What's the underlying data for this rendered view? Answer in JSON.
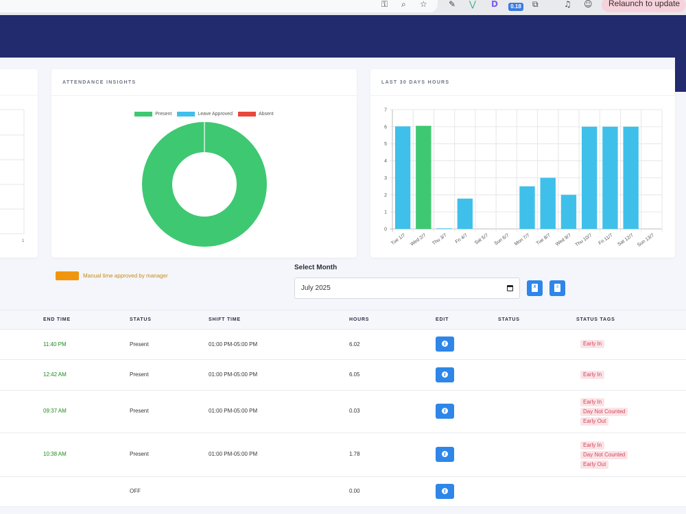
{
  "browser": {
    "ext_badge": "0.18",
    "relaunch_label": "Relaunch to update"
  },
  "colors": {
    "present": "#3ec872",
    "leave_approved": "#3fc0ea",
    "absent": "#e8473a",
    "manual": "#f0960e"
  },
  "attendance_card": {
    "title": "ATTENDANCE INSIGHTS",
    "legend": [
      {
        "label": "Present",
        "color": "#3ec872"
      },
      {
        "label": "Leave Approved",
        "color": "#3fc0ea"
      },
      {
        "label": "Absent",
        "color": "#e8473a"
      }
    ]
  },
  "hours_card": {
    "title": "LAST 30 DAYS HOURS"
  },
  "left_card": {
    "axis_tick": "1"
  },
  "chart_data": [
    {
      "type": "pie",
      "labels": [
        "Present",
        "Leave Approved",
        "Absent"
      ],
      "values": [
        100,
        0,
        0
      ],
      "colors": [
        "#3ec872",
        "#3fc0ea",
        "#e8473a"
      ],
      "donut": true
    },
    {
      "type": "bar",
      "categories": [
        "Tue 1/7",
        "Wed 2/7",
        "Thu 3/7",
        "Fri 4/7",
        "Sat 5/7",
        "Sun 6/7",
        "Mon 7/7",
        "Tue 8/7",
        "Wed 9/7",
        "Thu 10/7",
        "Fri 11/7",
        "Sat 12/7",
        "Sun 13/7"
      ],
      "values": [
        6.02,
        6.05,
        0.03,
        1.78,
        0,
        0,
        2.5,
        3,
        2,
        6,
        6,
        6,
        0
      ],
      "bar_colors": [
        "#3fc0ea",
        "#3ec872",
        "#3fc0ea",
        "#3fc0ea",
        "#3fc0ea",
        "#3fc0ea",
        "#3fc0ea",
        "#3fc0ea",
        "#3fc0ea",
        "#3fc0ea",
        "#3fc0ea",
        "#3fc0ea",
        "#3fc0ea"
      ],
      "yticks": [
        "0",
        "1",
        "2",
        "3",
        "4",
        "5",
        "6",
        "7"
      ],
      "ylim": [
        0,
        7
      ],
      "grid": true
    }
  ],
  "manual_legend": {
    "label": "Manual time approved by manager"
  },
  "month_filter": {
    "label": "Select Month",
    "value": "July 2025"
  },
  "table": {
    "headers": {
      "end_time": "END TIME",
      "status": "STATUS",
      "shift_time": "SHIFT TIME",
      "hours": "HOURS",
      "edit": "EDIT",
      "status2": "STATUS",
      "status_tags": "STATUS TAGS"
    },
    "rows": [
      {
        "end_time": "11:40 PM",
        "status": "Present",
        "shift_time": "01:00 PM-05:00 PM",
        "hours": "6.02",
        "tags": [
          "Early In"
        ]
      },
      {
        "end_time": "12:42 AM",
        "status": "Present",
        "shift_time": "01:00 PM-05:00 PM",
        "hours": "6.05",
        "tags": [
          "Early In"
        ]
      },
      {
        "end_time": "09:37 AM",
        "status": "Present",
        "shift_time": "01:00 PM-05:00 PM",
        "hours": "0.03",
        "tags": [
          "Early In",
          "Day Not Counted",
          "Early Out"
        ]
      },
      {
        "end_time": "10:38 AM",
        "status": "Present",
        "shift_time": "01:00 PM-05:00 PM",
        "hours": "1.78",
        "tags": [
          "Early In",
          "Day Not Counted",
          "Early Out"
        ]
      },
      {
        "end_time": "",
        "status": "OFF",
        "shift_time": "",
        "hours": "0.00",
        "tags": []
      }
    ]
  }
}
